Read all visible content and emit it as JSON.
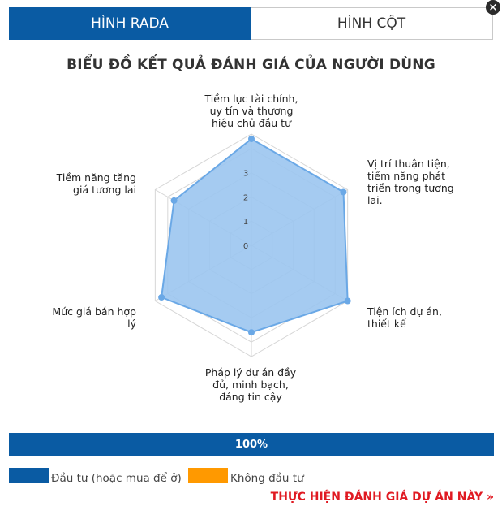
{
  "tabs": [
    {
      "label": "HÌNH RADA",
      "active": true
    },
    {
      "label": "HÌNH CỘT",
      "active": false
    }
  ],
  "close_icon": "×",
  "chart_data": {
    "type": "radar",
    "title": "BIỂU ĐỒ KẾT QUẢ ĐÁNH GIÁ CỦA NGƯỜI DÙNG",
    "categories": [
      "Tiềm lực tài chính, uy tín và thương hiệu chủ đầu tư",
      "Vị trí thuận tiện, tiềm năng phát triển trong tương lai.",
      "Tiện ích dự án, thiết kế",
      "Pháp lý dự án đầy đủ, minh bạch, đáng tin cậy",
      "Mức giá bán hợp lý",
      "Tiềm năng tăng giá tương lai"
    ],
    "series": [
      {
        "name": "Đầu tư (hoặc mua để ở)",
        "values": [
          4.4,
          4.4,
          4.6,
          3.6,
          4.3,
          3.7
        ],
        "color": "#9bc5f0"
      }
    ],
    "tick_labels": [
      "0",
      "1",
      "2",
      "3"
    ],
    "max": 4.6,
    "grid": true
  },
  "progress": {
    "label": "100%",
    "value": 100,
    "color": "#0a5ba3"
  },
  "legend": [
    {
      "label": "Đầu tư (hoặc mua để ở)",
      "color": "#0a5ba3"
    },
    {
      "label": "Không đầu tư",
      "color": "#ff9900"
    }
  ],
  "cta_label": "THỰC HIỆN ĐÁNH GIÁ DỰ ÁN NÀY »"
}
